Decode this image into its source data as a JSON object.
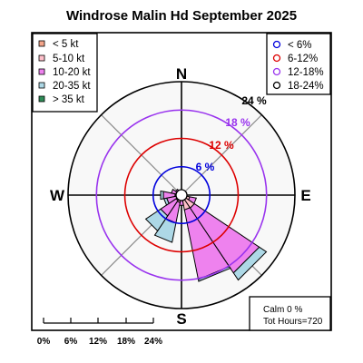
{
  "chart_data": {
    "type": "windrose",
    "title": "Windrose  Malin Hd September 2025",
    "compass": [
      "N",
      "E",
      "S",
      "W"
    ],
    "ring_labels": [
      "6 %",
      "12 %",
      "18 %",
      "24 %"
    ],
    "ring_values": [
      6,
      12,
      18,
      24
    ],
    "ring_colors": [
      "#0000dd",
      "#dd0000",
      "#9933ee",
      "#000000"
    ],
    "speed_legend": [
      {
        "label": "< 5  kt",
        "color": "#f4a58a"
      },
      {
        "label": "5-10 kt",
        "color": "#ffc0cb"
      },
      {
        "label": "10-20 kt",
        "color": "#ee82ee"
      },
      {
        "label": "20-35 kt",
        "color": "#add8e6"
      },
      {
        "label": "> 35 kt",
        "color": "#2e8b57"
      }
    ],
    "ring_legend": [
      {
        "label": "< 6%",
        "color": "#0000dd"
      },
      {
        "label": "6-12%",
        "color": "#dd0000"
      },
      {
        "label": "12-18%",
        "color": "#9933ee"
      },
      {
        "label": "18-24%",
        "color": "#000000"
      }
    ],
    "calm_text": "Calm 0 %",
    "hours_text": "Tot Hours=720",
    "scale_labels": [
      "0%",
      "6%",
      "12%",
      "18%",
      "24%"
    ],
    "sector_width_deg": 22.5,
    "series_order": [
      "< 5 kt",
      "5-10 kt",
      "10-20 kt",
      "20-35 kt",
      "> 35 kt"
    ],
    "sectors": [
      {
        "dir": 0,
        "pct": [
          0.2,
          0.3,
          0,
          0,
          0
        ]
      },
      {
        "dir": 22.5,
        "pct": [
          0.2,
          0.2,
          0,
          0,
          0
        ]
      },
      {
        "dir": 45,
        "pct": [
          0.2,
          0.2,
          0,
          0,
          0
        ]
      },
      {
        "dir": 67.5,
        "pct": [
          0.3,
          0.3,
          0,
          0,
          0
        ]
      },
      {
        "dir": 90,
        "pct": [
          0.3,
          0.4,
          0,
          0,
          0
        ]
      },
      {
        "dir": 112.5,
        "pct": [
          0.6,
          1.2,
          1.4,
          0,
          0
        ]
      },
      {
        "dir": 135,
        "pct": [
          0.8,
          2.5,
          16.5,
          1.8,
          0
        ]
      },
      {
        "dir": 157.5,
        "pct": [
          0.7,
          2.5,
          15.0,
          0.4,
          0
        ]
      },
      {
        "dir": 180,
        "pct": [
          0.4,
          0.8,
          1.0,
          0,
          0
        ]
      },
      {
        "dir": 202.5,
        "pct": [
          0.4,
          1.2,
          4.4,
          4.2,
          0
        ]
      },
      {
        "dir": 225,
        "pct": [
          0.2,
          1.2,
          3.9,
          3.8,
          0
        ]
      },
      {
        "dir": 247.5,
        "pct": [
          0.2,
          1.0,
          2.0,
          0.6,
          0
        ]
      },
      {
        "dir": 270,
        "pct": [
          0.2,
          1.2,
          2.5,
          0.6,
          0
        ]
      },
      {
        "dir": 292.5,
        "pct": [
          0.2,
          1.0,
          1.0,
          0,
          0
        ]
      },
      {
        "dir": 315,
        "pct": [
          0.2,
          0.5,
          0.8,
          0,
          0
        ]
      },
      {
        "dir": 337.5,
        "pct": [
          0.2,
          0.3,
          0.4,
          0,
          0
        ]
      }
    ]
  }
}
